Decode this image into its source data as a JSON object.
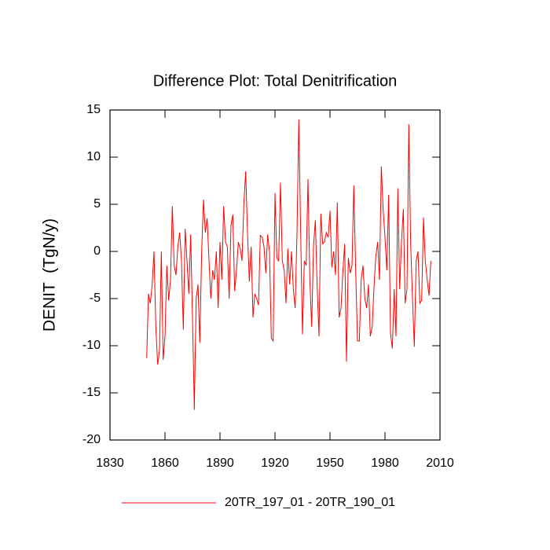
{
  "chart_data": {
    "type": "line",
    "title": "Difference Plot: Total Denitrification",
    "y_label": "DENIT  (TgN/y)",
    "x": [
      1850,
      1851,
      1852,
      1853,
      1854,
      1855,
      1856,
      1857,
      1858,
      1859,
      1860,
      1861,
      1862,
      1863,
      1864,
      1865,
      1866,
      1867,
      1868,
      1869,
      1870,
      1871,
      1872,
      1873,
      1874,
      1875,
      1876,
      1877,
      1878,
      1879,
      1880,
      1881,
      1882,
      1883,
      1884,
      1885,
      1886,
      1887,
      1888,
      1889,
      1890,
      1891,
      1892,
      1893,
      1894,
      1895,
      1896,
      1897,
      1898,
      1899,
      1900,
      1901,
      1902,
      1903,
      1904,
      1905,
      1906,
      1907,
      1908,
      1909,
      1910,
      1911,
      1912,
      1913,
      1914,
      1915,
      1916,
      1917,
      1918,
      1919,
      1920,
      1921,
      1922,
      1923,
      1924,
      1925,
      1926,
      1927,
      1928,
      1929,
      1930,
      1931,
      1932,
      1933,
      1934,
      1935,
      1936,
      1937,
      1938,
      1939,
      1940,
      1941,
      1942,
      1943,
      1944,
      1945,
      1946,
      1947,
      1948,
      1949,
      1950,
      1951,
      1952,
      1953,
      1954,
      1955,
      1956,
      1957,
      1958,
      1959,
      1960,
      1961,
      1962,
      1963,
      1964,
      1965,
      1966,
      1967,
      1968,
      1969,
      1970,
      1971,
      1972,
      1973,
      1974,
      1975,
      1976,
      1977,
      1978,
      1979,
      1980,
      1981,
      1982,
      1983,
      1984,
      1985,
      1986,
      1987,
      1988,
      1989,
      1990,
      1991,
      1992,
      1993,
      1994,
      1995,
      1996,
      1997,
      1998,
      1999,
      2000,
      2001,
      2002,
      2003,
      2004,
      2005
    ],
    "series": [
      {
        "name": "20TR_197_01 - 20TR_190_01",
        "color": "#ff0000",
        "values": [
          -11.3,
          -4.5,
          -5.5,
          -3.5,
          0,
          -8,
          -12,
          -10.5,
          0,
          -11.5,
          -9,
          -1.5,
          -5.2,
          -3,
          4.8,
          -1.5,
          -2.5,
          0.5,
          2,
          -1,
          -8.3,
          2.4,
          -1,
          -4.5,
          1.8,
          -7,
          -16.8,
          -5,
          -3.5,
          -9.7,
          0,
          5.5,
          2,
          3.5,
          -1,
          -5,
          -2,
          -3,
          0,
          -6,
          1,
          -3,
          4.8,
          1,
          0.5,
          -5,
          2.8,
          3.9,
          -4.2,
          -2,
          1,
          0.3,
          -1,
          5,
          8.5,
          2,
          -3.2,
          0.5,
          -7,
          -4.5,
          -5,
          -5.7,
          1.7,
          1.5,
          0.5,
          -2.3,
          1.8,
          0,
          -9.2,
          -9.5,
          6.2,
          -0.7,
          -1,
          7.3,
          -1,
          -2,
          -5.5,
          0.3,
          -3.5,
          0,
          -4,
          -6,
          2,
          14,
          2,
          -8.8,
          -1,
          -1.5,
          7.7,
          -3,
          -8,
          0.5,
          3.3,
          -3.7,
          -9,
          4,
          0.8,
          1,
          2,
          1.5,
          4.3,
          -1.7,
          0,
          -2.5,
          5.2,
          -7,
          -6,
          -2.2,
          0.8,
          -11.7,
          -0.7,
          -2.3,
          -1.5,
          7,
          -2,
          -9.5,
          -9.5,
          -3,
          -1.5,
          -5,
          -6,
          -3.5,
          -9,
          -8,
          -3.8,
          -0.5,
          1,
          -3,
          9,
          4.4,
          1.5,
          -2,
          6,
          -8.7,
          -10.3,
          -4,
          -9,
          6.7,
          -4,
          1,
          4.5,
          -5.5,
          -4,
          13.5,
          0.8,
          -5,
          -10.1,
          -1,
          0,
          -5.5,
          -5.2,
          3.6,
          -1,
          -3,
          -4.7,
          -1
        ]
      }
    ],
    "xlim": [
      1830,
      2010
    ],
    "xticks": [
      1830,
      1860,
      1890,
      1920,
      1950,
      1980,
      2010
    ],
    "ylim": [
      -20,
      15
    ],
    "yticks": [
      -20,
      -15,
      -10,
      -5,
      0,
      5,
      10,
      15
    ]
  }
}
